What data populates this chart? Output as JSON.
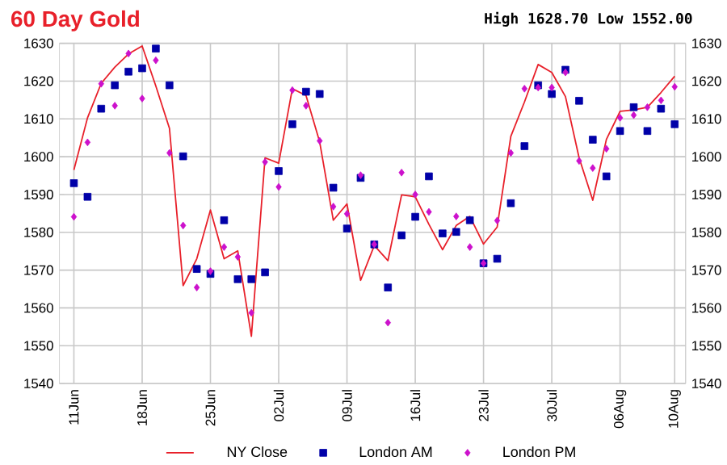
{
  "chart_data": {
    "type": "line",
    "title": "60 Day Gold",
    "subtitle": "High 1628.70 Low 1552.00",
    "categories": [
      "11Jun",
      null,
      null,
      null,
      null,
      "18Jun",
      null,
      null,
      null,
      null,
      "25Jun",
      null,
      null,
      null,
      null,
      "02Jul",
      null,
      null,
      null,
      null,
      "09Jul",
      null,
      null,
      null,
      null,
      "16Jul",
      null,
      null,
      null,
      null,
      "23Jul",
      null,
      null,
      null,
      null,
      "30Jul",
      null,
      null,
      null,
      null,
      "06Aug",
      null,
      null,
      null,
      "10Aug"
    ],
    "series": [
      {
        "name": "NY Close",
        "marker": "none",
        "color": "#e8202a",
        "values": [
          1596.5,
          1610.3,
          1619.4,
          1623.7,
          1627.2,
          1629.3,
          1618.7,
          1607.5,
          1565.9,
          1573,
          1585.9,
          1573,
          1575.1,
          1552.5,
          1599.7,
          1598.3,
          1618,
          1616.2,
          1603.9,
          1583.2,
          1587.5,
          1567.3,
          1576.5,
          1572.5,
          1589.9,
          1589.4,
          1582.1,
          1575.4,
          1581.8,
          1584.2,
          1576.9,
          1581.4,
          1605.4,
          1614.5,
          1624.4,
          1622.3,
          1615.9,
          1599.7,
          1588.5,
          1604.6,
          1612,
          1612.4,
          1613.1,
          1617,
          1621.3
        ]
      },
      {
        "name": "London AM",
        "type": "scatter",
        "marker": "square",
        "color": "#0000a8",
        "values": [
          1593,
          1589.4,
          1612.7,
          1618.9,
          1622.5,
          1623.4,
          1628.6,
          1618.9,
          1600.1,
          1570.3,
          1569,
          1583.2,
          1567.6,
          1567.6,
          1569.4,
          1596.2,
          1608.6,
          1617.2,
          1616.6,
          1591.8,
          1581,
          1594.4,
          1576.8,
          1565.4,
          1579.2,
          1584.1,
          1594.8,
          1579.7,
          1580.1,
          1583.2,
          1571.8,
          1573,
          1587.7,
          1602.8,
          1618.9,
          1616.6,
          1623,
          1614.8,
          1604.5,
          1594.8,
          1606.8,
          1613.1,
          1606.8,
          1612.7,
          1608.6
        ]
      },
      {
        "name": "London PM",
        "type": "scatter",
        "marker": "diamond",
        "color": "#cc11cc",
        "values": [
          1584.1,
          1603.8,
          1619.3,
          1613.5,
          1627.3,
          1615.4,
          1625.5,
          1601,
          1581.8,
          1565.4,
          1569.7,
          1576.1,
          1573.5,
          1558.7,
          1598.6,
          1592,
          1617.6,
          1613.5,
          1604.2,
          1586.8,
          1584.9,
          1595.1,
          1576.8,
          1556.1,
          1595.8,
          1590,
          1585.4,
          null,
          1584.2,
          1576.1,
          1571.8,
          1583.1,
          1601,
          1618,
          1618.3,
          1618.3,
          1622.3,
          1598.9,
          1597,
          1602.1,
          1610.3,
          1611,
          1613.1,
          1614.9,
          1618.5
        ]
      }
    ],
    "ylim": [
      1540,
      1630
    ],
    "yticks": [
      1540,
      1550,
      1560,
      1570,
      1580,
      1590,
      1600,
      1610,
      1620,
      1630
    ],
    "y2lim": [
      1540,
      1630
    ],
    "y2ticks": [
      1540,
      1550,
      1560,
      1570,
      1580,
      1590,
      1600,
      1610,
      1620,
      1630
    ],
    "grid": true,
    "legend": "bottom"
  }
}
